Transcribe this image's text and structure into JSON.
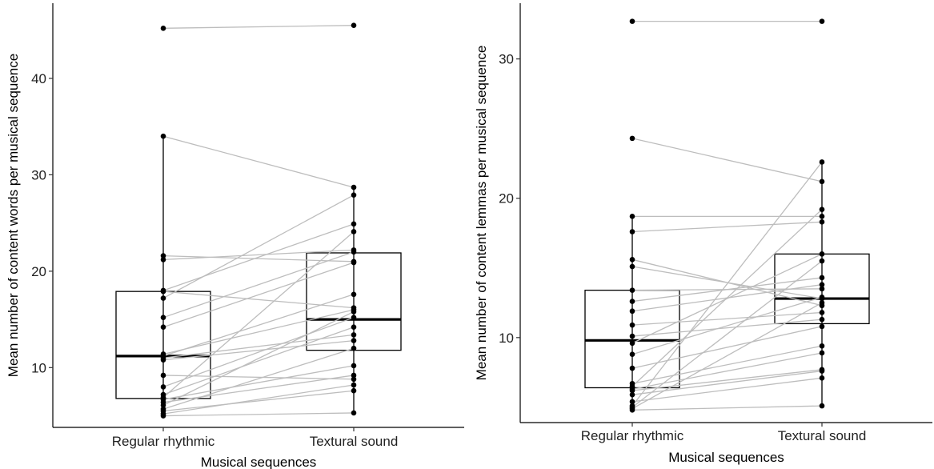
{
  "chart_data": [
    {
      "type": "box",
      "xlabel": "Musical sequences",
      "ylabel": "Mean number of content words per musical sequence",
      "categories": [
        "Regular rhythmic",
        "Textural sound"
      ],
      "ylim": [
        3.8,
        47.8
      ],
      "yticks": [
        10,
        20,
        30,
        40
      ],
      "grid": false,
      "legend": "none",
      "boxes": [
        {
          "category": "Regular rhythmic",
          "q1": 6.8,
          "median": 11.2,
          "q3": 17.9,
          "whisker_low": 5.0,
          "whisker_high": 34.0
        },
        {
          "category": "Textural sound",
          "q1": 11.8,
          "median": 15.0,
          "q3": 21.9,
          "whisker_low": 5.3,
          "whisker_high": 28.7
        }
      ],
      "pairs": [
        [
          45.2,
          45.5
        ],
        [
          34.0,
          28.7
        ],
        [
          21.6,
          21.0
        ],
        [
          21.2,
          22.2
        ],
        [
          18.0,
          24.9
        ],
        [
          17.9,
          16.2
        ],
        [
          17.2,
          27.9
        ],
        [
          15.2,
          22.0
        ],
        [
          14.2,
          20.9
        ],
        [
          11.4,
          16.0
        ],
        [
          11.2,
          17.6
        ],
        [
          11.0,
          13.4
        ],
        [
          10.8,
          12.8
        ],
        [
          9.2,
          8.8
        ],
        [
          8.0,
          15.2
        ],
        [
          7.2,
          14.2
        ],
        [
          6.9,
          24.1
        ],
        [
          6.7,
          10.2
        ],
        [
          6.4,
          9.2
        ],
        [
          6.1,
          15.8
        ],
        [
          5.7,
          12.0
        ],
        [
          5.5,
          7.6
        ],
        [
          5.2,
          8.2
        ],
        [
          5.0,
          5.3
        ]
      ]
    },
    {
      "type": "box",
      "xlabel": "Musical sequences",
      "ylabel": "Mean number of content lemmas per musical sequence",
      "categories": [
        "Regular rhythmic",
        "Textural sound"
      ],
      "ylim": [
        3.9,
        34.0
      ],
      "yticks": [
        10,
        20,
        30
      ],
      "grid": false,
      "legend": "none",
      "boxes": [
        {
          "category": "Regular rhythmic",
          "q1": 6.4,
          "median": 9.8,
          "q3": 13.4,
          "whisker_low": 4.8,
          "whisker_high": 18.7
        },
        {
          "category": "Textural sound",
          "q1": 11.0,
          "median": 12.8,
          "q3": 16.0,
          "whisker_low": 5.1,
          "whisker_high": 22.6
        }
      ],
      "pairs": [
        [
          32.7,
          32.7
        ],
        [
          24.3,
          21.2
        ],
        [
          18.7,
          18.7
        ],
        [
          17.6,
          18.3
        ],
        [
          15.6,
          12.3
        ],
        [
          15.1,
          12.8
        ],
        [
          13.4,
          13.5
        ],
        [
          12.6,
          14.3
        ],
        [
          11.9,
          13.8
        ],
        [
          10.9,
          11.8
        ],
        [
          10.1,
          11.3
        ],
        [
          9.6,
          16.0
        ],
        [
          8.8,
          12.9
        ],
        [
          7.8,
          10.8
        ],
        [
          6.7,
          9.4
        ],
        [
          6.5,
          19.2
        ],
        [
          6.3,
          8.9
        ],
        [
          6.2,
          7.7
        ],
        [
          5.9,
          7.6
        ],
        [
          5.4,
          7.1
        ],
        [
          5.1,
          22.6
        ],
        [
          5.0,
          15.5
        ],
        [
          4.9,
          12.5
        ],
        [
          4.8,
          5.1
        ]
      ]
    }
  ]
}
